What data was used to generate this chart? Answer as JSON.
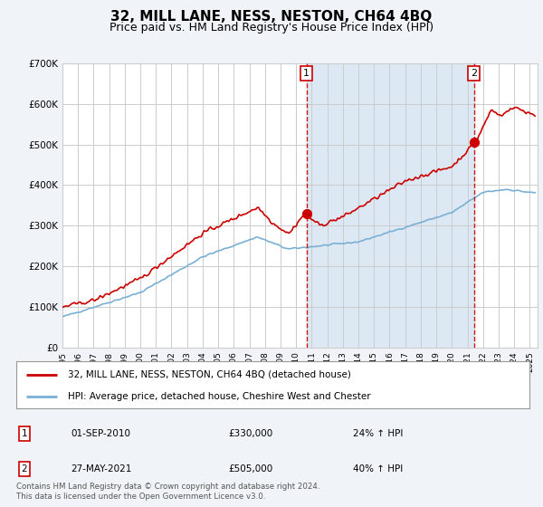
{
  "title": "32, MILL LANE, NESS, NESTON, CH64 4BQ",
  "subtitle": "Price paid vs. HM Land Registry's House Price Index (HPI)",
  "legend_line1": "32, MILL LANE, NESS, NESTON, CH64 4BQ (detached house)",
  "legend_line2": "HPI: Average price, detached house, Cheshire West and Chester",
  "footnote": "Contains HM Land Registry data © Crown copyright and database right 2024.\nThis data is licensed under the Open Government Licence v3.0.",
  "transaction1_date": "01-SEP-2010",
  "transaction1_price": "£330,000",
  "transaction1_hpi": "24% ↑ HPI",
  "transaction2_date": "27-MAY-2021",
  "transaction2_price": "£505,000",
  "transaction2_hpi": "40% ↑ HPI",
  "price_color": "#cc0000",
  "hpi_color": "#7ab0d4",
  "dashed_line_color": "#cc0000",
  "shade_color": "#dce9f5",
  "ylim": [
    0,
    700000
  ],
  "yticks": [
    0,
    100000,
    200000,
    300000,
    400000,
    500000,
    600000,
    700000
  ],
  "ytick_labels": [
    "£0",
    "£100K",
    "£200K",
    "£300K",
    "£400K",
    "£500K",
    "£600K",
    "£700K"
  ],
  "sale1_x": 2010.67,
  "sale1_y": 330000,
  "sale2_x": 2021.42,
  "sale2_y": 505000,
  "vline1_x": 2010.67,
  "vline2_x": 2021.42,
  "xlim_left": 1995,
  "xlim_right": 2025.5,
  "bg_color": "#f0f4f8",
  "plot_bg": "#ffffff",
  "grid_color": "#cccccc",
  "title_fontsize": 11,
  "subtitle_fontsize": 9
}
